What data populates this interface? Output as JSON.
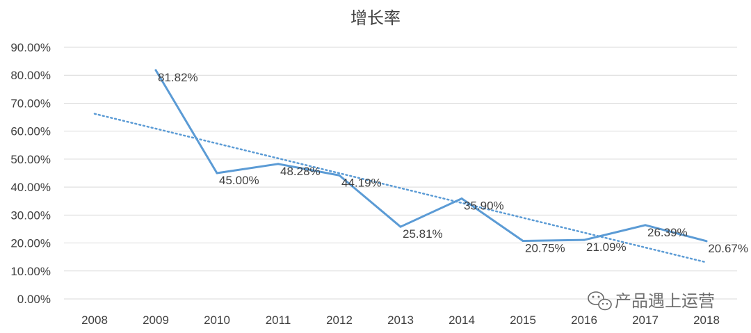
{
  "chart_data": {
    "type": "line",
    "title": "增长率",
    "categories": [
      "2008",
      "2009",
      "2010",
      "2011",
      "2012",
      "2013",
      "2014",
      "2015",
      "2016",
      "2017",
      "2018"
    ],
    "series": [
      {
        "values": [
          null,
          81.82,
          45.0,
          48.28,
          44.19,
          25.81,
          35.9,
          20.75,
          21.09,
          26.39,
          20.67
        ],
        "labels": [
          "",
          "81.82%",
          "45.00%",
          "48.28%",
          "44.19%",
          "25.81%",
          "35.90%",
          "20.75%",
          "21.09%",
          "26.39%",
          "20.67%"
        ],
        "color": "#5b9bd5"
      }
    ],
    "trendline": {
      "type": "linear",
      "style": "dotted",
      "color": "#5b9bd5"
    },
    "ylim": [
      0,
      90
    ],
    "yticks": [
      "0.00%",
      "10.00%",
      "20.00%",
      "30.00%",
      "40.00%",
      "50.00%",
      "60.00%",
      "70.00%",
      "80.00%",
      "90.00%"
    ],
    "grid": true,
    "legend": "none"
  },
  "watermark": {
    "text": "产品遇上运营"
  }
}
